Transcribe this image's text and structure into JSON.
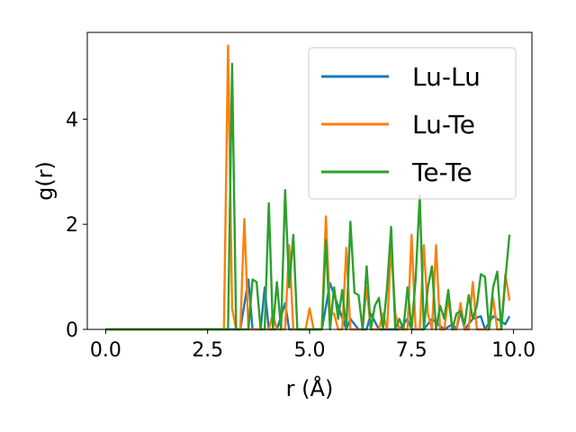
{
  "chart_data": {
    "type": "line",
    "xlabel": "r (Å)",
    "ylabel": "g(r)",
    "xlim": [
      -0.45,
      10.45
    ],
    "ylim": [
      0,
      5.65
    ],
    "x_ticks": [
      0.0,
      2.5,
      5.0,
      7.5,
      10.0
    ],
    "x_tick_labels": [
      "0.0",
      "2.5",
      "5.0",
      "7.5",
      "10.0"
    ],
    "y_ticks": [
      0,
      2,
      4
    ],
    "y_tick_labels": [
      "0",
      "2",
      "4"
    ],
    "grid": false,
    "legend_placement": "top-right",
    "series": [
      {
        "name": "Lu-Lu",
        "color": "#1f77b4",
        "x": [
          0,
          2.9,
          3.3,
          3.5,
          3.6,
          3.8,
          3.9,
          4.0,
          4.2,
          4.4,
          4.5,
          4.6,
          4.8,
          5.0,
          5.2,
          5.3,
          5.5,
          5.9,
          6.0,
          6.2,
          6.4,
          6.5,
          6.7,
          6.9,
          7.2,
          7.4,
          7.5,
          7.7,
          7.8,
          8.0,
          8.3,
          8.5,
          8.6,
          8.7,
          8.8,
          9.0,
          9.2,
          9.3,
          9.5,
          9.8,
          9.9
        ],
        "values": [
          0,
          0,
          0,
          0.95,
          0,
          0,
          0.8,
          0,
          0,
          0.5,
          0,
          0,
          0,
          0,
          0,
          0,
          0.88,
          0,
          0.2,
          0,
          0,
          0.3,
          0,
          0,
          0,
          0.2,
          0,
          0,
          0,
          0.2,
          0,
          0.1,
          0,
          0.35,
          0,
          0.2,
          0.25,
          0,
          0.25,
          0.1,
          0.25
        ]
      },
      {
        "name": "Lu-Te",
        "color": "#ff7f0e",
        "x": [
          0,
          2.9,
          3.0,
          3.1,
          3.2,
          3.3,
          3.4,
          3.5,
          3.6,
          3.8,
          4.0,
          4.1,
          4.2,
          4.3,
          4.4,
          4.5,
          4.6,
          4.7,
          4.8,
          4.9,
          5.0,
          5.1,
          5.2,
          5.3,
          5.4,
          5.5,
          5.6,
          5.7,
          5.8,
          5.9,
          6.0,
          6.1,
          6.2,
          6.3,
          6.4,
          6.5,
          6.6,
          6.7,
          6.8,
          6.9,
          7.0,
          7.1,
          7.2,
          7.3,
          7.4,
          7.5,
          7.6,
          7.7,
          7.8,
          7.9,
          8.0,
          8.1,
          8.2,
          8.3,
          8.4,
          8.5,
          8.6,
          8.7,
          8.8,
          8.9,
          9.0,
          9.1,
          9.2,
          9.3,
          9.4,
          9.5,
          9.6,
          9.7,
          9.8,
          9.9
        ],
        "values": [
          0,
          0,
          5.4,
          0.4,
          0,
          0,
          2.1,
          0,
          0,
          0,
          0,
          0.3,
          0,
          0,
          0,
          1.6,
          0,
          0,
          0,
          0,
          0.4,
          0,
          0,
          0,
          2.15,
          0.3,
          0.3,
          0,
          0,
          1.55,
          0,
          0,
          0,
          0,
          0.8,
          0,
          0,
          0,
          0.3,
          0,
          1.6,
          0.3,
          0,
          0,
          0,
          1.8,
          0,
          0,
          1.6,
          0.3,
          0,
          1.6,
          0,
          0,
          0.6,
          0,
          0,
          0.5,
          0,
          0,
          0.9,
          0,
          0,
          0,
          0,
          0.6,
          0,
          0,
          1.05,
          0.55
        ]
      },
      {
        "name": "Te-Te",
        "color": "#2ca02c",
        "x": [
          0,
          2.9,
          3.0,
          3.1,
          3.2,
          3.3,
          3.4,
          3.5,
          3.6,
          3.7,
          3.8,
          3.9,
          4.0,
          4.1,
          4.2,
          4.3,
          4.4,
          4.5,
          4.6,
          4.7,
          4.8,
          4.9,
          5.0,
          5.1,
          5.2,
          5.3,
          5.4,
          5.5,
          5.6,
          5.7,
          5.8,
          5.9,
          6.0,
          6.1,
          6.2,
          6.3,
          6.4,
          6.5,
          6.6,
          6.7,
          6.8,
          6.9,
          7.0,
          7.1,
          7.2,
          7.3,
          7.4,
          7.5,
          7.6,
          7.7,
          7.8,
          7.9,
          8.0,
          8.1,
          8.2,
          8.3,
          8.4,
          8.5,
          8.6,
          8.7,
          8.8,
          8.9,
          9.0,
          9.1,
          9.2,
          9.3,
          9.4,
          9.5,
          9.6,
          9.7,
          9.8,
          9.9
        ],
        "values": [
          0,
          0,
          0,
          5.05,
          0,
          0,
          0,
          0,
          0.95,
          0.9,
          0,
          0,
          2.4,
          0,
          0.9,
          0,
          2.65,
          0.8,
          1.8,
          0,
          0,
          0,
          0,
          0,
          0,
          0,
          1.7,
          0,
          0.8,
          0.2,
          0.75,
          0,
          2.05,
          0.7,
          0.65,
          0,
          1.2,
          0,
          0.45,
          0.6,
          0,
          0.8,
          1.95,
          0,
          0.2,
          0,
          0.8,
          0,
          0.95,
          2.55,
          0,
          0.8,
          1.2,
          0,
          0.45,
          0.2,
          0.75,
          0,
          0.3,
          0.35,
          0.1,
          0.65,
          0.2,
          0.45,
          1.05,
          1.0,
          0,
          0.8,
          1.1,
          0,
          0.95,
          1.8
        ]
      }
    ]
  }
}
